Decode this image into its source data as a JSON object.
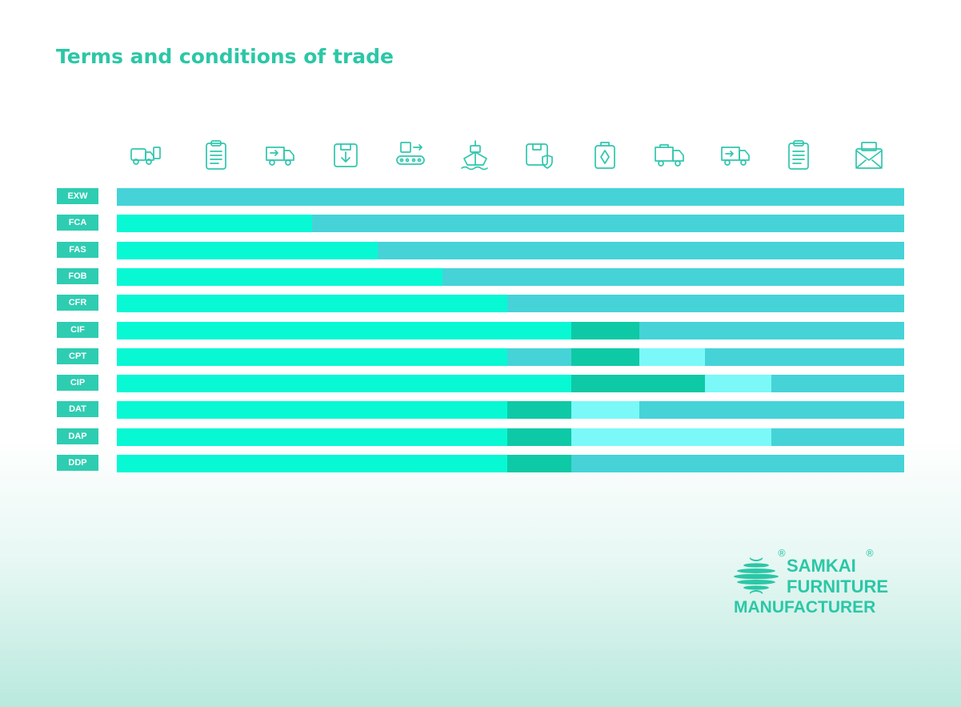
{
  "title": "Terms and conditions of trade",
  "icons": [
    "truck-loading-icon",
    "clipboard-document-icon",
    "delivery-truck-icon",
    "box-download-icon",
    "conveyor-box-icon",
    "cargo-ship-icon",
    "box-insurance-icon",
    "box-arrow-icon",
    "truck-icon",
    "delivery-van-icon",
    "clipboard-document-icon",
    "mail-envelope-icon"
  ],
  "colors": {
    "seller": "#08f8d4",
    "insurance": "#0ec9a5",
    "shared": "#7af9f8",
    "buyer": "#45d3d7",
    "label_bg": "#2ecdb1",
    "brand": "#2bc7a6"
  },
  "terms": [
    {
      "code": "EXW",
      "segments": [
        [
          "buyer",
          12
        ]
      ]
    },
    {
      "code": "FCA",
      "segments": [
        [
          "seller",
          3
        ],
        [
          "buyer",
          9
        ]
      ]
    },
    {
      "code": "FAS",
      "segments": [
        [
          "seller",
          4
        ],
        [
          "buyer",
          8
        ]
      ]
    },
    {
      "code": "FOB",
      "segments": [
        [
          "seller",
          5
        ],
        [
          "buyer",
          7
        ]
      ]
    },
    {
      "code": "CFR",
      "segments": [
        [
          "seller",
          6
        ],
        [
          "buyer",
          6
        ]
      ]
    },
    {
      "code": "CIF",
      "segments": [
        [
          "seller",
          7
        ],
        [
          "insurance",
          1
        ],
        [
          "buyer",
          4
        ]
      ]
    },
    {
      "code": "CPT",
      "segments": [
        [
          "seller",
          6
        ],
        [
          "buyer",
          1
        ],
        [
          "insurance",
          1
        ],
        [
          "shared",
          1
        ],
        [
          "buyer",
          3
        ]
      ]
    },
    {
      "code": "CIP",
      "segments": [
        [
          "seller",
          7
        ],
        [
          "insurance",
          2
        ],
        [
          "shared",
          1
        ],
        [
          "buyer",
          2
        ]
      ]
    },
    {
      "code": "DAT",
      "segments": [
        [
          "seller",
          6
        ],
        [
          "insurance",
          1
        ],
        [
          "shared",
          1
        ],
        [
          "buyer",
          4
        ]
      ]
    },
    {
      "code": "DAP",
      "segments": [
        [
          "seller",
          6
        ],
        [
          "insurance",
          1
        ],
        [
          "shared",
          3
        ],
        [
          "buyer",
          2
        ]
      ]
    },
    {
      "code": "DDP",
      "segments": [
        [
          "seller",
          6
        ],
        [
          "insurance",
          1
        ],
        [
          "buyer",
          5
        ]
      ]
    }
  ],
  "brand": {
    "line1": "SAMKAI",
    "line2": "FURNITURE",
    "line3": "MANUFACTURER",
    "registered_mark": "®"
  }
}
